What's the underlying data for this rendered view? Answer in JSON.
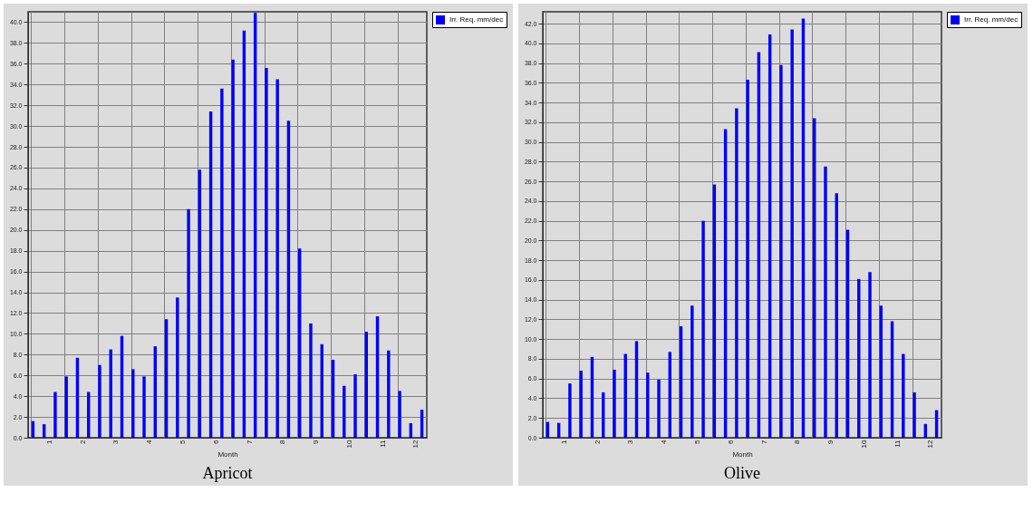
{
  "chart_data": [
    {
      "type": "bar",
      "title": "Apricot",
      "xlabel": "Month",
      "legend": "right",
      "grid": true,
      "categories": [
        null,
        "1",
        null,
        null,
        "2",
        null,
        null,
        "3",
        null,
        null,
        "4",
        null,
        null,
        "5",
        null,
        null,
        "6",
        null,
        null,
        "7",
        null,
        null,
        "8",
        null,
        null,
        "9",
        null,
        null,
        "10",
        null,
        null,
        "11",
        null,
        null,
        "12",
        null
      ],
      "series": [
        {
          "name": "Irr. Req. mm/dec",
          "color": "#0000ff",
          "values": [
            1.6,
            1.3,
            4.4,
            5.9,
            7.7,
            4.4,
            7.0,
            8.5,
            9.8,
            6.6,
            5.9,
            8.8,
            11.4,
            13.5,
            22.0,
            25.8,
            31.4,
            33.6,
            36.4,
            39.2,
            40.9,
            35.6,
            34.5,
            30.5,
            18.2,
            11.0,
            9.0,
            7.5,
            5.0,
            6.1,
            10.2,
            11.7,
            8.4,
            4.5,
            1.4,
            2.7
          ]
        }
      ],
      "ylim": [
        0,
        41
      ],
      "yticks": [
        {
          "value": 0,
          "label": "0.0"
        },
        {
          "value": 2,
          "label": "2.0"
        },
        {
          "value": 4,
          "label": "4.0"
        },
        {
          "value": 6,
          "label": "6.0"
        },
        {
          "value": 8,
          "label": "8.0"
        },
        {
          "value": 10,
          "label": "10.0"
        },
        {
          "value": 12,
          "label": "12.0"
        },
        {
          "value": 14,
          "label": "14.0"
        },
        {
          "value": 16,
          "label": "16.0"
        },
        {
          "value": 18,
          "label": "18.0"
        },
        {
          "value": 20,
          "label": "20.0"
        },
        {
          "value": 22,
          "label": "22.0"
        },
        {
          "value": 24,
          "label": "24.0"
        },
        {
          "value": 26,
          "label": "26.0"
        },
        {
          "value": 28,
          "label": "28.0"
        },
        {
          "value": 30,
          "label": "30.0"
        },
        {
          "value": 32,
          "label": "32.0"
        },
        {
          "value": 34,
          "label": "34.0"
        },
        {
          "value": 36,
          "label": "36.0"
        },
        {
          "value": 38,
          "label": "38.0"
        },
        {
          "value": 40,
          "label": "40.0"
        }
      ]
    },
    {
      "type": "bar",
      "title": "Olive",
      "xlabel": "Month",
      "legend": "right",
      "grid": true,
      "categories": [
        null,
        "1",
        null,
        null,
        "2",
        null,
        null,
        "3",
        null,
        null,
        "4",
        null,
        null,
        "5",
        null,
        null,
        "6",
        null,
        null,
        "7",
        null,
        null,
        "8",
        null,
        null,
        "9",
        null,
        null,
        "10",
        null,
        null,
        "11",
        null,
        null,
        "12",
        null
      ],
      "series": [
        {
          "name": "Irr. Req. mm/dec",
          "color": "#0000ff",
          "values": [
            1.6,
            1.5,
            5.5,
            6.8,
            8.2,
            4.6,
            6.9,
            8.5,
            9.8,
            6.6,
            5.9,
            8.7,
            11.3,
            13.4,
            22.0,
            25.7,
            31.3,
            33.4,
            36.3,
            39.1,
            40.9,
            37.8,
            41.4,
            42.5,
            32.4,
            27.5,
            24.8,
            21.1,
            16.1,
            16.8,
            13.4,
            11.8,
            8.5,
            4.6,
            1.4,
            2.8
          ]
        }
      ],
      "ylim": [
        0,
        43.2
      ],
      "yticks": [
        {
          "value": 0,
          "label": "0.0"
        },
        {
          "value": 2,
          "label": "2.0"
        },
        {
          "value": 4,
          "label": "4.0"
        },
        {
          "value": 6,
          "label": "6.0"
        },
        {
          "value": 8,
          "label": "8.0"
        },
        {
          "value": 10,
          "label": "10.0"
        },
        {
          "value": 12,
          "label": "12.0"
        },
        {
          "value": 14,
          "label": "14.0"
        },
        {
          "value": 16,
          "label": "16.0"
        },
        {
          "value": 18,
          "label": "18.0"
        },
        {
          "value": 20,
          "label": "20.0"
        },
        {
          "value": 22,
          "label": "22.0"
        },
        {
          "value": 24,
          "label": "24.0"
        },
        {
          "value": 26,
          "label": "26.0"
        },
        {
          "value": 28,
          "label": "28.0"
        },
        {
          "value": 30,
          "label": "30.0"
        },
        {
          "value": 32,
          "label": "32.0"
        },
        {
          "value": 34,
          "label": "34.0"
        },
        {
          "value": 36,
          "label": "36.0"
        },
        {
          "value": 38,
          "label": "38.0"
        },
        {
          "value": 40,
          "label": "40.0"
        },
        {
          "value": 42,
          "label": "42.0"
        }
      ]
    }
  ]
}
